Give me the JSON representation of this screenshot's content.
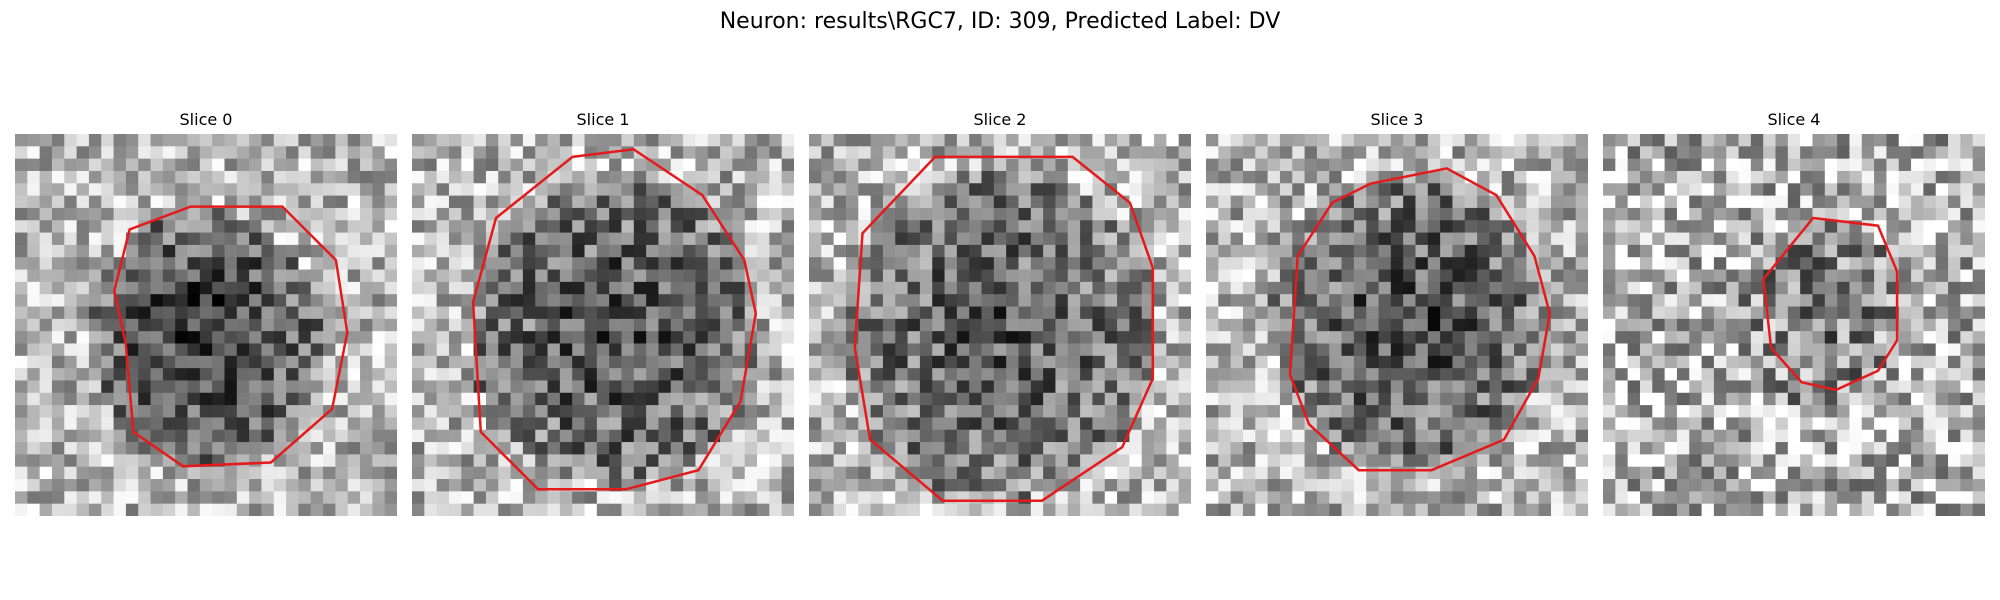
{
  "figure": {
    "title": "Neuron: results\\RGC7, ID: 309, Predicted Label: DV"
  },
  "slices": [
    {
      "title": "Slice 0"
    },
    {
      "title": "Slice 1"
    },
    {
      "title": "Slice 2"
    },
    {
      "title": "Slice 3"
    },
    {
      "title": "Slice 4"
    }
  ],
  "colors": {
    "contour": "#e41a1c",
    "background": "#ffffff"
  }
}
